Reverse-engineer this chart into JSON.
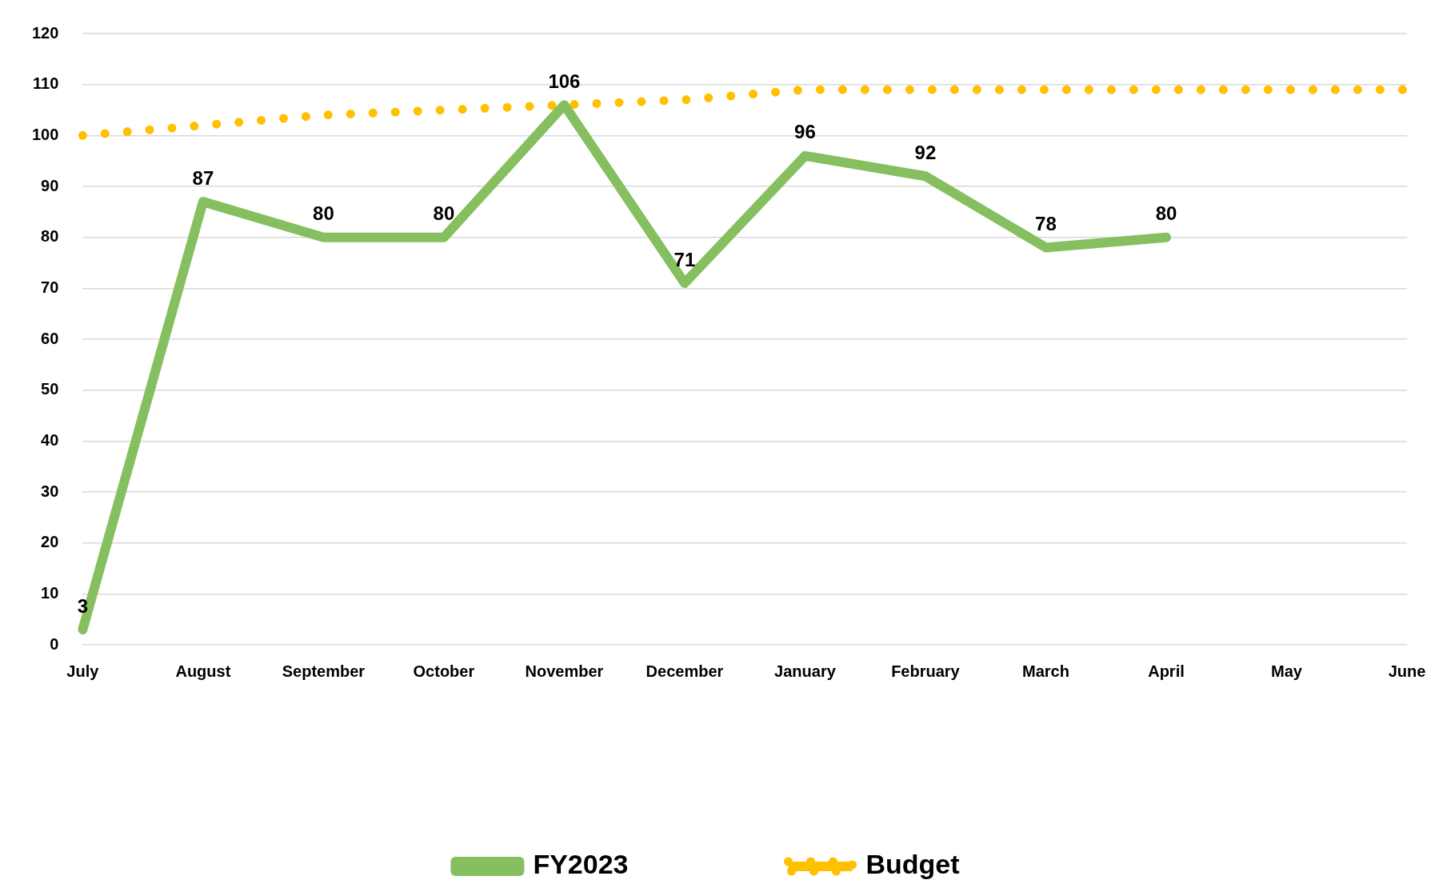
{
  "chart_data": {
    "type": "line",
    "categories": [
      "July",
      "August",
      "September",
      "October",
      "November",
      "December",
      "January",
      "February",
      "March",
      "April",
      "May",
      "June"
    ],
    "series": [
      {
        "name": "FY2023",
        "color": "#86bf5f",
        "line_style": "solid",
        "values": [
          3,
          87,
          80,
          80,
          106,
          71,
          96,
          92,
          78,
          80,
          null,
          null
        ],
        "value_labels": [
          "3",
          "87",
          "80",
          "80",
          "106",
          "71",
          "96",
          "92",
          "78",
          "80",
          null,
          null
        ]
      },
      {
        "name": "Budget",
        "color": "#ffc000",
        "line_style": "dotted",
        "values": [
          100,
          102,
          104,
          105,
          106,
          107,
          109,
          109,
          109,
          109,
          109,
          109
        ]
      }
    ],
    "ylim": [
      0,
      120
    ],
    "yticks": [
      0,
      10,
      20,
      30,
      40,
      50,
      60,
      70,
      80,
      90,
      100,
      110,
      120
    ],
    "grid": "y",
    "legend": "bottom",
    "marker": "none"
  }
}
